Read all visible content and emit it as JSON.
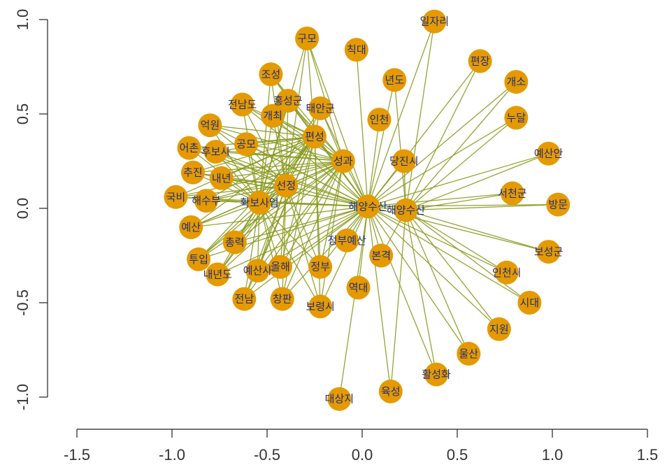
{
  "chart_data": {
    "type": "scatter",
    "title": "",
    "xlabel": "",
    "ylabel": "",
    "xlim": [
      -1.5,
      1.5
    ],
    "ylim": [
      -1.0,
      1.0
    ],
    "x_ticks": [
      "-1.5",
      "-1.0",
      "-0.5",
      "0.0",
      "0.5",
      "1.0",
      "1.5"
    ],
    "y_ticks": [
      "-1.0",
      "-0.5",
      "0.0",
      "0.5",
      "1.0"
    ],
    "grid": false,
    "hub": "해양수산",
    "colors": {
      "node": "#e49a00",
      "edge": "#8a9a1e",
      "label": "#1f2d7a"
    },
    "nodes": [
      {
        "label": "일자리",
        "x": 0.38,
        "y": 0.99
      },
      {
        "label": "구모",
        "x": -0.29,
        "y": 0.9
      },
      {
        "label": "칙대",
        "x": -0.03,
        "y": 0.84
      },
      {
        "label": "편장",
        "x": 0.62,
        "y": 0.78
      },
      {
        "label": "조성",
        "x": -0.48,
        "y": 0.71
      },
      {
        "label": "년도",
        "x": 0.17,
        "y": 0.68
      },
      {
        "label": "개소",
        "x": 0.81,
        "y": 0.67
      },
      {
        "label": "전남도",
        "x": -0.63,
        "y": 0.55
      },
      {
        "label": "홍성군",
        "x": -0.39,
        "y": 0.57
      },
      {
        "label": "태안군",
        "x": -0.22,
        "y": 0.53
      },
      {
        "label": "개최",
        "x": -0.47,
        "y": 0.49
      },
      {
        "label": "인천",
        "x": 0.09,
        "y": 0.47
      },
      {
        "label": "누달",
        "x": 0.81,
        "y": 0.48
      },
      {
        "label": "억원",
        "x": -0.8,
        "y": 0.44
      },
      {
        "label": "편성",
        "x": -0.25,
        "y": 0.38
      },
      {
        "label": "공모",
        "x": -0.61,
        "y": 0.34
      },
      {
        "label": "어촌",
        "x": -0.91,
        "y": 0.32
      },
      {
        "label": "후보사",
        "x": -0.77,
        "y": 0.3
      },
      {
        "label": "예산안",
        "x": 0.98,
        "y": 0.29
      },
      {
        "label": "당진시",
        "x": 0.22,
        "y": 0.25
      },
      {
        "label": "성과",
        "x": -0.1,
        "y": 0.25
      },
      {
        "label": "추진",
        "x": -0.89,
        "y": 0.19
      },
      {
        "label": "내년",
        "x": -0.74,
        "y": 0.16
      },
      {
        "label": "선정",
        "x": -0.4,
        "y": 0.12
      },
      {
        "label": "서천군",
        "x": 0.79,
        "y": 0.08
      },
      {
        "label": "국비",
        "x": -0.98,
        "y": 0.06
      },
      {
        "label": "해수부",
        "x": -0.82,
        "y": 0.04
      },
      {
        "label": "확보사업",
        "x": -0.54,
        "y": 0.03
      },
      {
        "label": "방문",
        "x": 1.03,
        "y": 0.02
      },
      {
        "label": "해양수산",
        "x": 0.03,
        "y": 0.01
      },
      {
        "label": "해양수산",
        "x": 0.23,
        "y": -0.01
      },
      {
        "label": "예산",
        "x": -0.9,
        "y": -0.1
      },
      {
        "label": "총력",
        "x": -0.67,
        "y": -0.18
      },
      {
        "label": "정부예산",
        "x": -0.08,
        "y": -0.17
      },
      {
        "label": "보성군",
        "x": 0.98,
        "y": -0.23
      },
      {
        "label": "투입",
        "x": -0.86,
        "y": -0.27
      },
      {
        "label": "본격",
        "x": 0.1,
        "y": -0.25
      },
      {
        "label": "내년도",
        "x": -0.76,
        "y": -0.35
      },
      {
        "label": "예산사",
        "x": -0.55,
        "y": -0.33
      },
      {
        "label": "올해",
        "x": -0.43,
        "y": -0.31
      },
      {
        "label": "정부",
        "x": -0.22,
        "y": -0.31
      },
      {
        "label": "인천시",
        "x": 0.76,
        "y": -0.34
      },
      {
        "label": "역대",
        "x": -0.02,
        "y": -0.42
      },
      {
        "label": "전남",
        "x": -0.62,
        "y": -0.48
      },
      {
        "label": "창판",
        "x": -0.42,
        "y": -0.48
      },
      {
        "label": "보령시",
        "x": -0.22,
        "y": -0.52
      },
      {
        "label": "시대",
        "x": 0.88,
        "y": -0.5
      },
      {
        "label": "지원",
        "x": 0.72,
        "y": -0.64
      },
      {
        "label": "울산",
        "x": 0.56,
        "y": -0.77
      },
      {
        "label": "활성화",
        "x": 0.39,
        "y": -0.88
      },
      {
        "label": "육성",
        "x": 0.15,
        "y": -0.97
      },
      {
        "label": "대상지",
        "x": -0.12,
        "y": -1.01
      }
    ]
  }
}
